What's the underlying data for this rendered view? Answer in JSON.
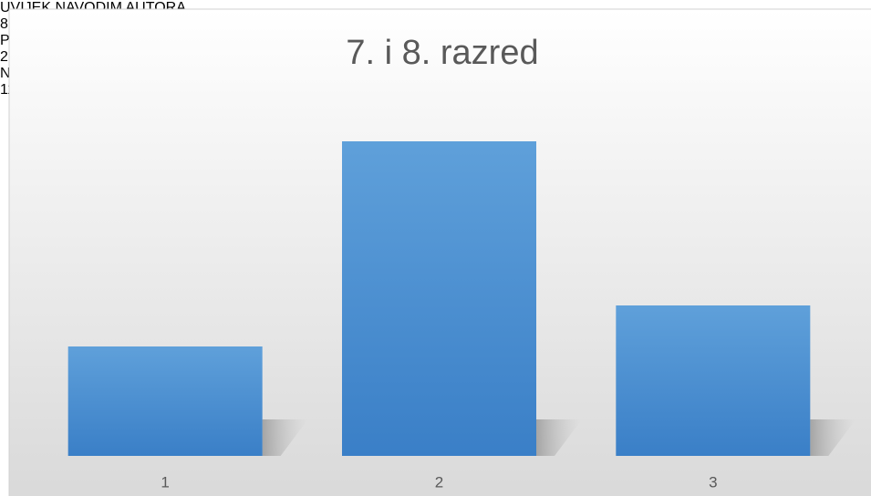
{
  "chart_data": {
    "type": "bar",
    "title": "7. i 8. razred",
    "categories": [
      "1",
      "2",
      "3"
    ],
    "values": [
      8,
      23,
      11
    ],
    "data_labels": [
      "UVIJEK NAVODIM AUTORA",
      "PONEKAD NAVODIM AUTORA",
      "NIKADA NE NAVODIM AUTORA"
    ],
    "color": "#4a8fd2",
    "ylim": [
      0,
      25
    ],
    "grid": false
  }
}
